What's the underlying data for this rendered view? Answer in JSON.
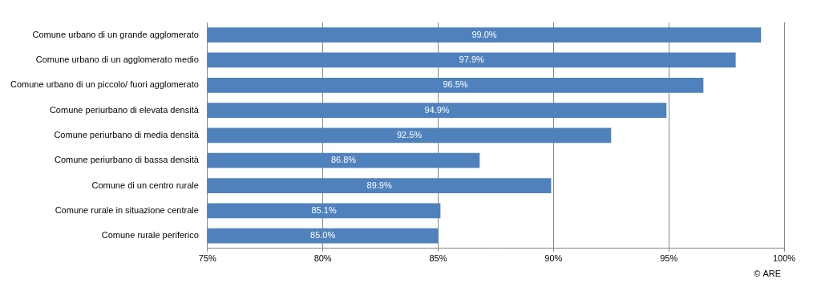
{
  "chart_data": {
    "type": "bar",
    "orientation": "horizontal",
    "categories": [
      "Comune urbano di un grande agglomerato",
      "Comune urbano di un agglomerato medio",
      "Comune urbano di un piccolo/ fuori agglomerato",
      "Comune periurbano di elevata densità",
      "Comune periurbano di media densità",
      "Comune periurbano di bassa densità",
      "Comune di un centro rurale",
      "Comune rurale in situazione centrale",
      "Comune rurale periferico"
    ],
    "values": [
      99.0,
      97.9,
      96.5,
      94.9,
      92.5,
      86.8,
      89.9,
      85.1,
      85.0
    ],
    "value_labels": [
      "99.0%",
      "97.9%",
      "96.5%",
      "94.9%",
      "92.5%",
      "86.8%",
      "89.9%",
      "85.1%",
      "85.0%"
    ],
    "data_labels": true,
    "color": "#4f81bd",
    "xlim": [
      75,
      100
    ],
    "xticks": [
      {
        "value": 75,
        "label": "75%"
      },
      {
        "value": 80,
        "label": "80%"
      },
      {
        "value": 85,
        "label": "85%"
      },
      {
        "value": 90,
        "label": "90%"
      },
      {
        "value": 95,
        "label": "95%"
      },
      {
        "value": 100,
        "label": "100%"
      }
    ],
    "grid": true,
    "source": "© ARE"
  }
}
